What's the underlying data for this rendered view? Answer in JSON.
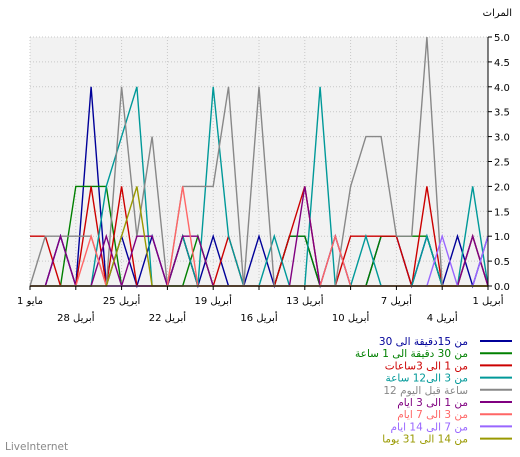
{
  "chart_data": {
    "type": "line",
    "ylabel": "المرات",
    "ylim": [
      0,
      5
    ],
    "y_ticks": [
      "0.0",
      "0.5",
      "1.0",
      "1.5",
      "2.0",
      "2.5",
      "3.0",
      "3.5",
      "4.0",
      "4.5",
      "5.0"
    ],
    "x_ticks_row1": [
      "1 مايو",
      "25 أبريل",
      "19 أبريل",
      "13 أبريل",
      "7 أبريل",
      "1 أبريل"
    ],
    "x_ticks_row2": [
      "28 أبريل",
      "22 أبريل",
      "16 أبريل",
      "10 أبريل",
      "4 أبريل"
    ],
    "grid": true,
    "legend_position": "bottom-right",
    "n_points": 31,
    "series": [
      {
        "name": "من 15دقيقة الى 30",
        "color": "#000099",
        "values": [
          1,
          0,
          1,
          0,
          1,
          0,
          1,
          1,
          0,
          0,
          1,
          0,
          1,
          1,
          0,
          1,
          0,
          0,
          1,
          0,
          1,
          0,
          1,
          0,
          1,
          0,
          4,
          0,
          1,
          0,
          0
        ]
      },
      {
        "name": "من 30 دقيقة الى 1 ساعة",
        "color": "#008000",
        "values": [
          0,
          0,
          0,
          0,
          1,
          1,
          1,
          1,
          0,
          0,
          0,
          0,
          1,
          1,
          0,
          0,
          0,
          0,
          0,
          1,
          0,
          0,
          0,
          0,
          0,
          2,
          2,
          2,
          0,
          0,
          0
        ]
      },
      {
        "name": "من 1 الى 3ساعات",
        "color": "#cc0000",
        "values": [
          0,
          1,
          0,
          0,
          2,
          0,
          1,
          1,
          1,
          1,
          0,
          0,
          2,
          1,
          0,
          0,
          0,
          1,
          0,
          0,
          1,
          0,
          0,
          0,
          2,
          0,
          2,
          0,
          0,
          1,
          1
        ]
      },
      {
        "name": "من 3 الى12 ساعة",
        "color": "#009999",
        "values": [
          0,
          2,
          0,
          0,
          1,
          0,
          0,
          0,
          1,
          0,
          0,
          4,
          0,
          0,
          1,
          0,
          0,
          1,
          4,
          0,
          1,
          0,
          0,
          4,
          3,
          2,
          0,
          0,
          0,
          0,
          0
        ]
      },
      {
        "name": "12 ساعة قبل اليوم",
        "color": "#888888",
        "values": [
          0,
          1,
          0,
          0,
          5,
          1,
          1,
          3,
          3,
          2,
          0,
          0,
          0,
          0,
          0,
          4,
          0,
          4,
          2,
          2,
          2,
          0,
          3,
          1,
          4,
          0,
          1,
          1,
          1,
          1,
          0
        ]
      },
      {
        "name": "من 1 الى 3 ايام",
        "color": "#800080",
        "values": [
          0,
          1,
          0,
          0,
          0,
          0,
          0,
          0,
          0,
          0,
          0,
          0,
          2,
          0,
          0,
          0,
          0,
          0,
          0,
          1,
          1,
          0,
          1,
          1,
          0,
          1,
          0,
          0,
          1,
          0,
          0
        ]
      },
      {
        "name": "من 3 الى 7 ايام",
        "color": "#ff6666",
        "values": [
          0,
          0,
          0,
          0,
          0,
          0,
          0,
          0,
          0,
          0,
          1,
          0,
          0,
          0,
          0,
          0,
          0,
          0,
          0,
          0,
          2,
          0,
          0,
          0,
          0,
          0,
          1,
          0,
          0,
          0,
          0
        ]
      },
      {
        "name": "من 7 الى 14 ايام",
        "color": "#9966ff",
        "values": [
          1,
          0,
          0,
          1,
          0,
          0,
          0,
          0,
          0,
          0,
          0,
          0,
          0,
          0,
          0,
          0,
          0,
          0,
          0,
          0,
          0,
          0,
          0,
          0,
          0,
          0,
          0,
          0,
          0,
          0,
          0
        ]
      },
      {
        "name": "من 14 الى 31 يوما",
        "color": "#999900",
        "values": [
          0,
          0,
          0,
          0,
          0,
          0,
          0,
          0,
          0,
          0,
          0,
          0,
          0,
          0,
          0,
          0,
          0,
          0,
          0,
          0,
          0,
          0,
          0,
          2,
          1,
          0,
          0,
          0,
          0,
          0,
          0
        ]
      }
    ]
  },
  "footer": "LiveInternet"
}
